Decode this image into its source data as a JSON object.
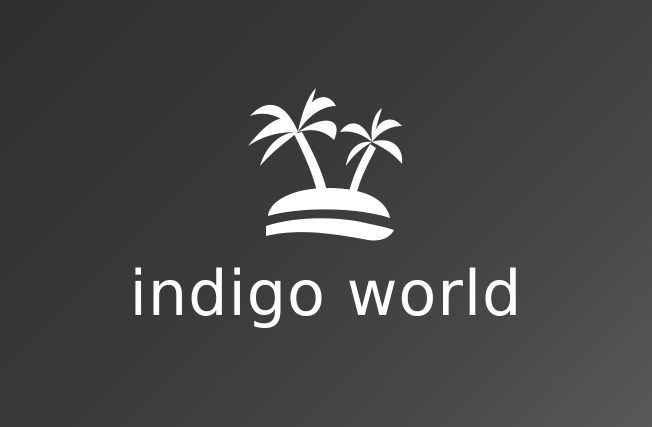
{
  "brand": {
    "name": "indigo world",
    "icon": "palm-island-icon",
    "text_color": "#ffffff",
    "background_gradient": [
      "#2f2f2f",
      "#595959"
    ]
  }
}
